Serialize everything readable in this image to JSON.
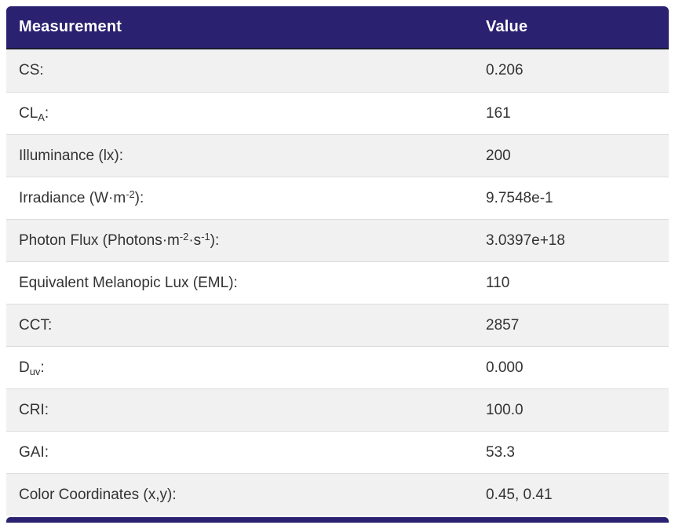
{
  "colors": {
    "header_bg": "#2a2171",
    "header_text": "#ffffff",
    "row_alt_bg": "#f1f1f1",
    "row_bg": "#ffffff",
    "body_text": "#333333",
    "row_border": "#dcdcdc"
  },
  "table": {
    "columns": [
      "Measurement",
      "Value"
    ],
    "rows": [
      {
        "label": "CS:",
        "value": "0.206"
      },
      {
        "label": "CL~A~:",
        "value": "161"
      },
      {
        "label": "Illuminance (lx):",
        "value": "200"
      },
      {
        "label": "Irradiance (W·m^-2^):",
        "value": "9.7548e-1"
      },
      {
        "label": "Photon Flux (Photons·m^-2^·s^-1^):",
        "value": "3.0397e+18"
      },
      {
        "label": "Equivalent Melanopic Lux (EML):",
        "value": "110"
      },
      {
        "label": "CCT:",
        "value": "2857"
      },
      {
        "label": "D~uv~:",
        "value": "0.000"
      },
      {
        "label": "CRI:",
        "value": "100.0"
      },
      {
        "label": "GAI:",
        "value": "53.3"
      },
      {
        "label": "Color Coordinates (x,y):",
        "value": "0.45, 0.41"
      }
    ]
  }
}
